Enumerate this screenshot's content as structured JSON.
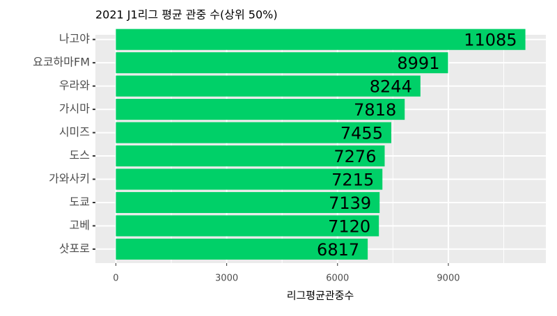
{
  "chart_data": {
    "type": "bar",
    "orientation": "horizontal",
    "title": "2021 J1리그 평균 관중 수(상위 50%)",
    "x_label": "리그평균관중수",
    "categories": [
      "나고야",
      "요코하마FM",
      "우라와",
      "가시마",
      "시미즈",
      "도스",
      "가와사키",
      "도쿄",
      "고베",
      "삿포로"
    ],
    "values": [
      11085,
      8991,
      8244,
      7818,
      7455,
      7276,
      7215,
      7139,
      7120,
      6817
    ],
    "color": "#00d068",
    "xlim": [
      -554.25,
      11639.25
    ],
    "xticks": [
      0,
      3000,
      6000,
      9000
    ],
    "x_minor_grid": [
      1500,
      4500,
      7500,
      10500
    ],
    "grid": true
  }
}
